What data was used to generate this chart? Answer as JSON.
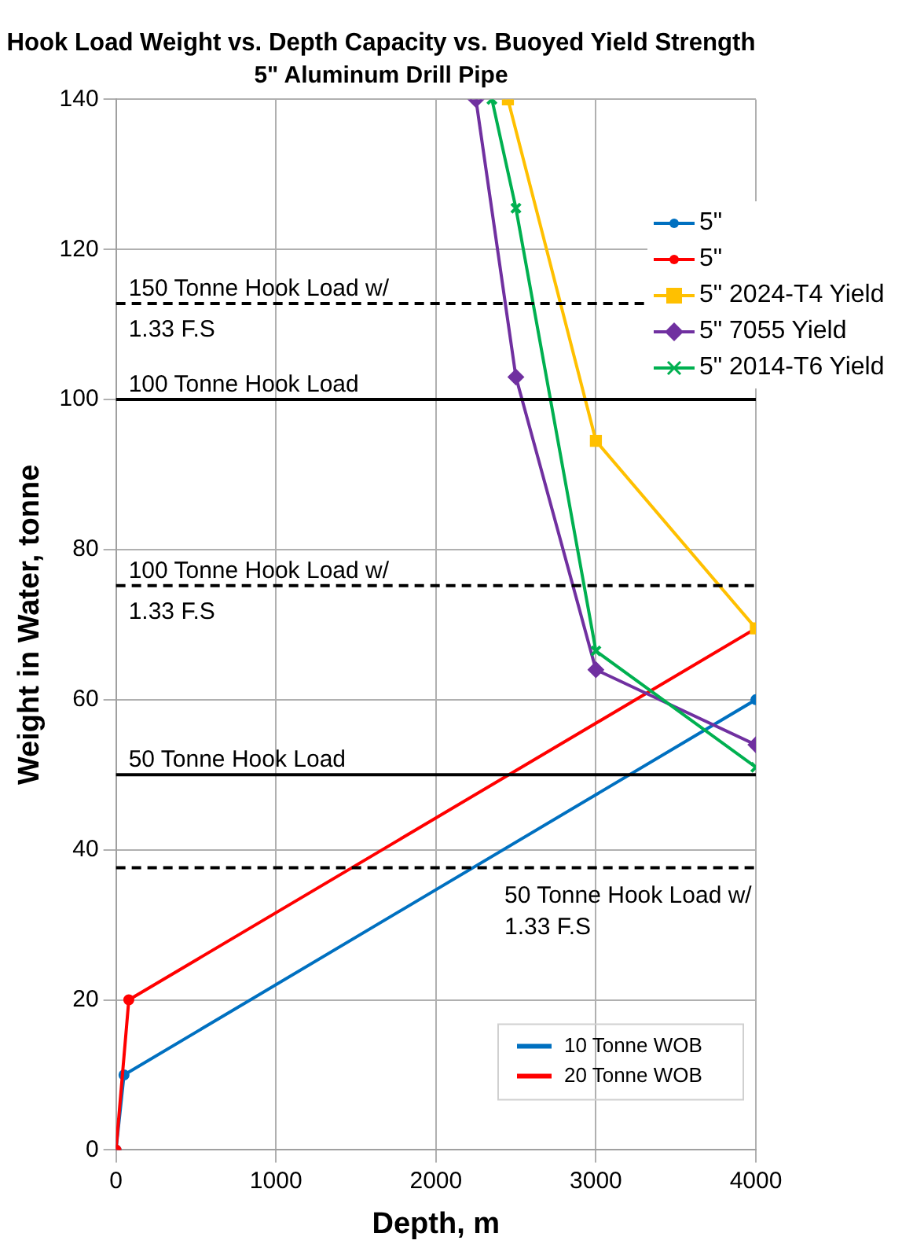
{
  "chart_data": {
    "type": "line",
    "title": "Hook Load Weight vs. Depth Capacity vs. Buoyed Yield Strength",
    "subtitle": "5\" Aluminum Drill Pipe",
    "xlabel": "Depth, m",
    "ylabel": "Weight in Water, tonne",
    "series": [
      {
        "name": "5\"",
        "color": "#0070c0",
        "marker": "circle",
        "x": [
          0,
          50,
          4000
        ],
        "values": [
          0,
          10,
          60
        ]
      },
      {
        "name": "5\"",
        "color": "#ff0000",
        "marker": "circle",
        "x": [
          0,
          80,
          4000
        ],
        "values": [
          0,
          20,
          69.5
        ]
      },
      {
        "name": "5\" 2024-T4 Yield",
        "color": "#ffc000",
        "marker": "square",
        "x": [
          2450,
          3000,
          4000
        ],
        "values": [
          140,
          94.5,
          69.5
        ]
      },
      {
        "name": "5\" 7055 Yield",
        "color": "#7030a0",
        "marker": "diamond",
        "x": [
          2250,
          2500,
          3000,
          4000
        ],
        "values": [
          140,
          103,
          64,
          54
        ]
      },
      {
        "name": "5\" 2014-T6 Yield",
        "color": "#00b050",
        "marker": "cross",
        "x": [
          2350,
          2500,
          3000,
          4000
        ],
        "values": [
          140,
          125.5,
          66.5,
          51
        ]
      }
    ],
    "xlim": [
      0,
      4000
    ],
    "xticks": [
      0,
      1000,
      2000,
      3000,
      4000
    ],
    "ylim": [
      0,
      140
    ],
    "yticks": [
      0,
      20,
      40,
      60,
      80,
      100,
      120,
      140
    ],
    "grid": true,
    "legend": "right",
    "ref_lines": [
      {
        "axis": "y",
        "value": 112.8,
        "label": "150 Tonne Hook Load w/ 1.33 F.S",
        "line_style": "dashed",
        "color": "#000000"
      },
      {
        "axis": "y",
        "value": 100,
        "label": "100 Tonne Hook Load",
        "line_style": "solid",
        "color": "#000000"
      },
      {
        "axis": "y",
        "value": 75.2,
        "label": "100 Tonne Hook Load w/ 1.33 F.S",
        "line_style": "dashed",
        "color": "#000000"
      },
      {
        "axis": "y",
        "value": 50,
        "label": "50 Tonne Hook Load",
        "line_style": "solid",
        "color": "#000000"
      },
      {
        "axis": "y",
        "value": 37.6,
        "label": "50 Tonne Hook Load w/ 1.33 F.S",
        "line_style": "dashed",
        "color": "#000000"
      }
    ],
    "annotations": [
      "10 Tonne WOB",
      "20 Tonne WOB"
    ]
  }
}
